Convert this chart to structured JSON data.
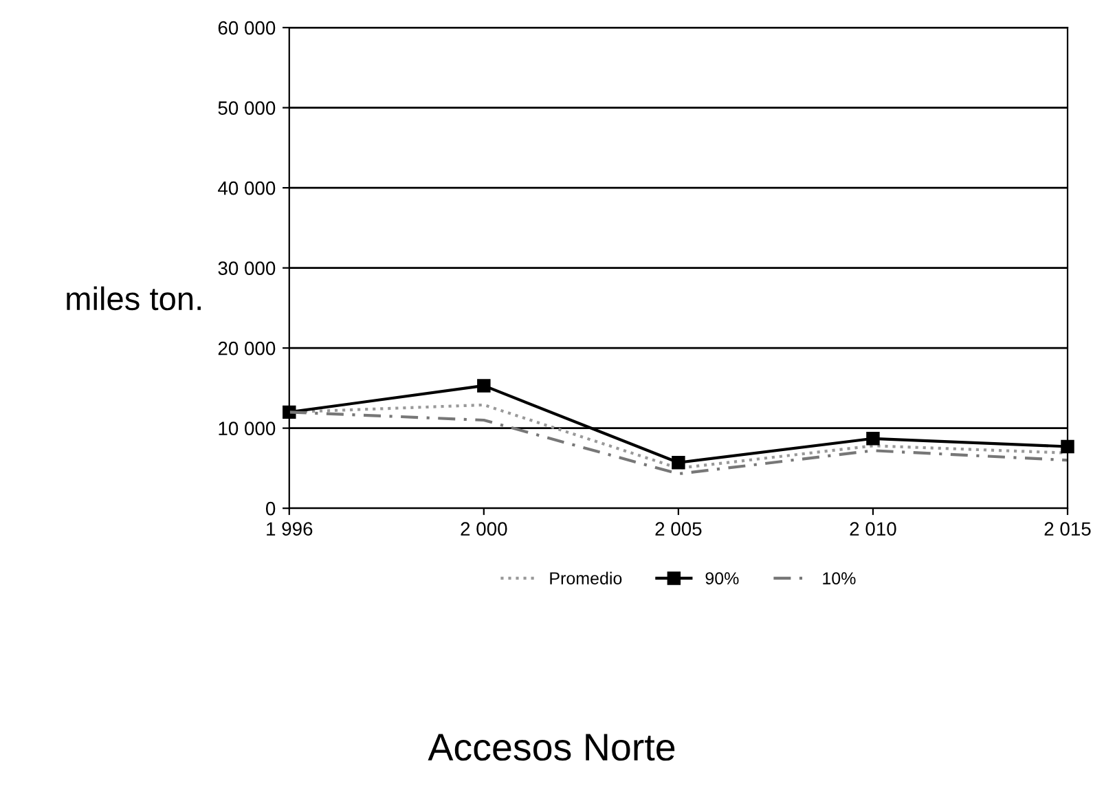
{
  "chart_data": {
    "type": "line",
    "title": "Accesos Norte",
    "ylabel": "miles ton.",
    "categories": [
      "1 996",
      "2 000",
      "2 005",
      "2 010",
      "2 015"
    ],
    "series": [
      {
        "name": "Promedio",
        "color": "#999999",
        "line_style": "dotted",
        "marker": "none",
        "values": [
          12000,
          12900,
          5000,
          7800,
          6900
        ]
      },
      {
        "name": "90%",
        "color": "#000000",
        "line_style": "solid",
        "marker": "square",
        "values": [
          12000,
          15300,
          5700,
          8700,
          7700
        ]
      },
      {
        "name": "10%",
        "color": "#777777",
        "line_style": "dashed",
        "marker": "none",
        "values": [
          12000,
          11000,
          4300,
          7200,
          6000
        ]
      }
    ],
    "ylim": [
      0,
      60000
    ],
    "yticks": [
      {
        "value": 0,
        "label": "0"
      },
      {
        "value": 10000,
        "label": "10 000"
      },
      {
        "value": 20000,
        "label": "20 000"
      },
      {
        "value": 30000,
        "label": "30 000"
      },
      {
        "value": 40000,
        "label": "40 000"
      },
      {
        "value": 50000,
        "label": "50 000"
      },
      {
        "value": 60000,
        "label": "60 000"
      }
    ],
    "grid": "y",
    "legend": "bottom"
  }
}
